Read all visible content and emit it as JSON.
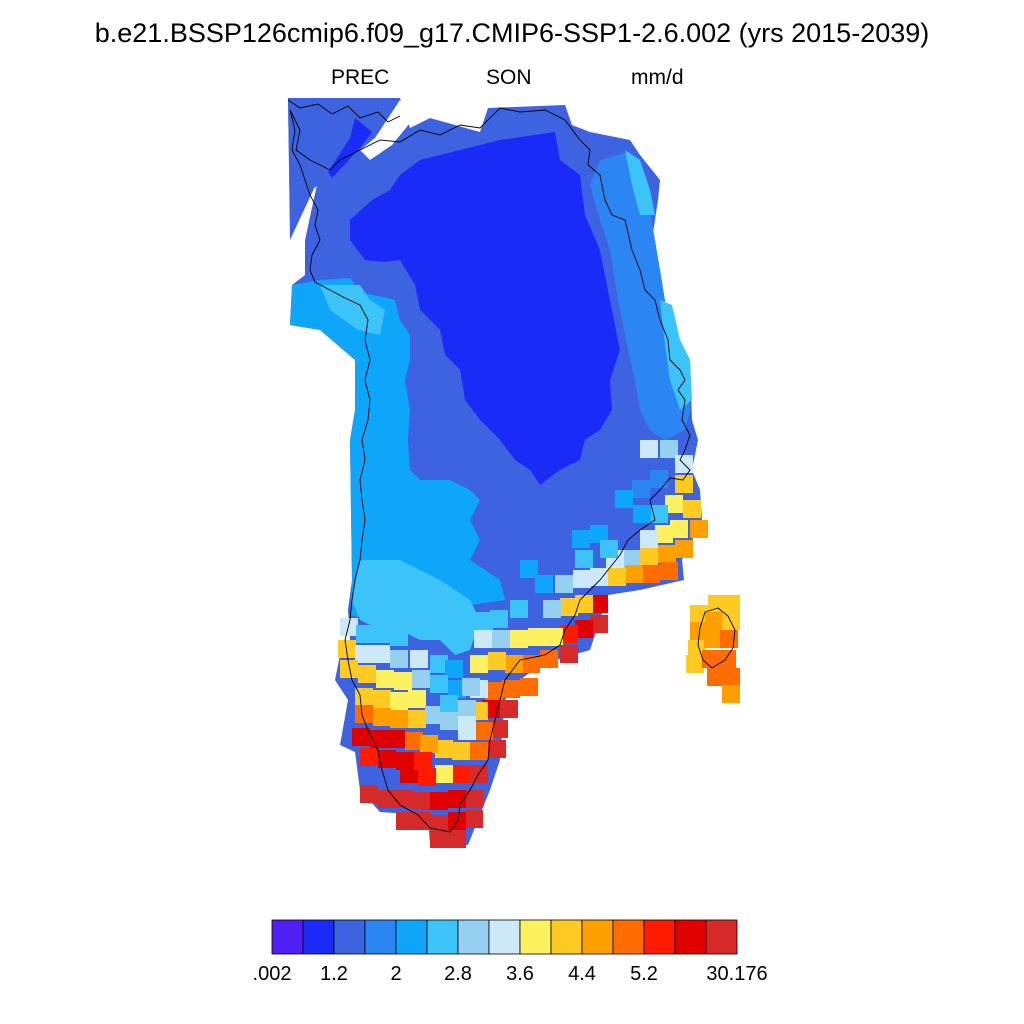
{
  "header": {
    "title": "b.e21.BSSP126cmip6.f09_g17.CMIP6-SSP1-2.6.002 (yrs 2015-2039)",
    "variable": "PREC",
    "season": "SON",
    "units": "mm/d"
  },
  "colorbar": {
    "colors": [
      "#4f1ff3",
      "#1a2bf8",
      "#3e63e0",
      "#2b86f4",
      "#0ea6fb",
      "#3cc3f8",
      "#96d0f0",
      "#cde8f7",
      "#fef160",
      "#ffcb22",
      "#ff9f00",
      "#ff6c00",
      "#ff1b00",
      "#e00000",
      "#d62a2a"
    ],
    "labels": [
      ".002",
      "1.2",
      "2",
      "2.8",
      "3.6",
      "4.4",
      "5.2",
      "30.176"
    ]
  },
  "map": {
    "region": "Greenland",
    "ocean_mask_color": "#ffffff",
    "coastline_color": "#000000",
    "colors": {
      "c1": "#1a2bf8",
      "c2": "#3e63e0",
      "c3": "#2b86f4",
      "c4": "#0ea6fb",
      "c5": "#3cc3f8",
      "c6": "#96d0f0",
      "c7": "#cde8f7",
      "c8": "#fef160",
      "c9": "#ffcb22",
      "c10": "#ff9f00",
      "c11": "#ff6c00",
      "c12": "#ff1b00",
      "c13": "#e00000",
      "c14": "#d62a2a"
    }
  }
}
